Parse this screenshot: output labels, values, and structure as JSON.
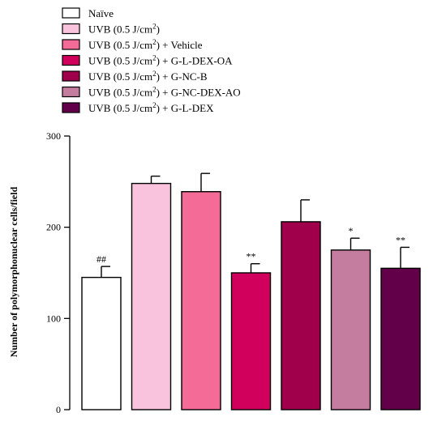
{
  "chart_data": {
    "type": "bar",
    "ylabel": "Number of polymorphonuclear cells/field",
    "xlabel": "",
    "ylim": [
      0,
      300
    ],
    "yticks": [
      0,
      100,
      200,
      300
    ],
    "grid": false,
    "legend_position": "top-left",
    "series": [
      {
        "name": "Naïve",
        "value": 145,
        "error": 12,
        "sig": "##",
        "color": "#ffffff"
      },
      {
        "name": "UVB (0.5 J/cm²)",
        "value": 248,
        "error": 8,
        "sig": "",
        "color": "#f9c3dd"
      },
      {
        "name": "UVB (0.5 J/cm²) + Vehicle",
        "value": 239,
        "error": 20,
        "sig": "",
        "color": "#f46b97"
      },
      {
        "name": "UVB (0.5 J/cm²) + G-L-DEX-OA",
        "value": 150,
        "error": 10,
        "sig": "**",
        "color": "#d1005d"
      },
      {
        "name": "UVB (0.5 J/cm²) + G-NC-B",
        "value": 206,
        "error": 24,
        "sig": "",
        "color": "#a0004b"
      },
      {
        "name": "UVB (0.5 J/cm²) + G-NC-DEX-AO",
        "value": 175,
        "error": 13,
        "sig": "*",
        "color": "#c47c9f"
      },
      {
        "name": "UVB (0.5 J/cm²) + G-L-DEX",
        "value": 155,
        "error": 23,
        "sig": "**",
        "color": "#62004a"
      }
    ]
  }
}
